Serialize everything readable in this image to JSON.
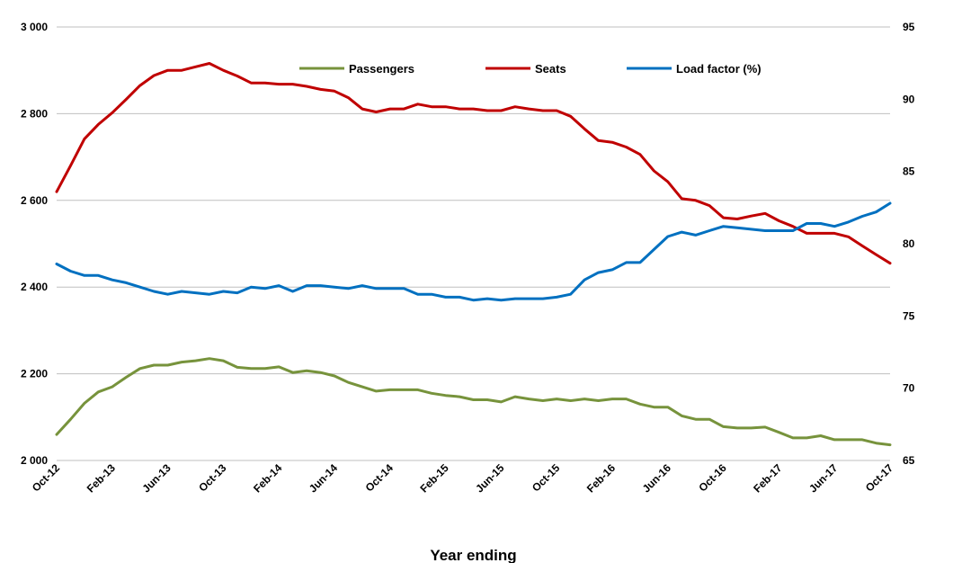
{
  "chart_data": {
    "type": "line",
    "xlabel": "Year ending",
    "ylabel": "",
    "y2label": "",
    "ylim": [
      2000,
      3000
    ],
    "y2lim": [
      65,
      95
    ],
    "yticks": [
      "2 000",
      "2 200",
      "2 400",
      "2 600",
      "2 800",
      "3 000"
    ],
    "y2ticks": [
      "65",
      "70",
      "75",
      "80",
      "85",
      "90",
      "95"
    ],
    "grid": "horizontal",
    "legend_placement": "top",
    "x": [
      "Oct-12",
      "Nov-12",
      "Dec-12",
      "Jan-13",
      "Feb-13",
      "Mar-13",
      "Apr-13",
      "May-13",
      "Jun-13",
      "Jul-13",
      "Aug-13",
      "Sep-13",
      "Oct-13",
      "Nov-13",
      "Dec-13",
      "Jan-14",
      "Feb-14",
      "Mar-14",
      "Apr-14",
      "May-14",
      "Jun-14",
      "Jul-14",
      "Aug-14",
      "Sep-14",
      "Oct-14",
      "Nov-14",
      "Dec-14",
      "Jan-15",
      "Feb-15",
      "Mar-15",
      "Apr-15",
      "May-15",
      "Jun-15",
      "Jul-15",
      "Aug-15",
      "Sep-15",
      "Oct-15",
      "Nov-15",
      "Dec-15",
      "Jan-16",
      "Feb-16",
      "Mar-16",
      "Apr-16",
      "May-16",
      "Jun-16",
      "Jul-16",
      "Aug-16",
      "Sep-16",
      "Oct-16",
      "Nov-16",
      "Dec-16",
      "Jan-17",
      "Feb-17",
      "Mar-17",
      "Apr-17",
      "May-17",
      "Jun-17",
      "Jul-17",
      "Aug-17",
      "Sep-17",
      "Oct-17"
    ],
    "xtick_labels": [
      "Oct-12",
      "Feb-13",
      "Jun-13",
      "Oct-13",
      "Feb-14",
      "Jun-14",
      "Oct-14",
      "Feb-15",
      "Jun-15",
      "Oct-15",
      "Feb-16",
      "Jun-16",
      "Oct-16",
      "Feb-17",
      "Jun-17",
      "Oct-17"
    ],
    "series": [
      {
        "name": "Passengers",
        "axis": "left",
        "color": "#77933c",
        "values": [
          2060,
          2095,
          2132,
          2158,
          2170,
          2192,
          2212,
          2220,
          2220,
          2227,
          2230,
          2235,
          2230,
          2215,
          2212,
          2212,
          2216,
          2203,
          2207,
          2203,
          2195,
          2180,
          2170,
          2160,
          2163,
          2163,
          2163,
          2155,
          2150,
          2147,
          2140,
          2140,
          2135,
          2147,
          2142,
          2138,
          2142,
          2138,
          2142,
          2138,
          2142,
          2142,
          2130,
          2123,
          2123,
          2103,
          2095,
          2095,
          2078,
          2075,
          2075,
          2077,
          2065,
          2052,
          2052,
          2057,
          2048,
          2048,
          2048,
          2040,
          2036
        ]
      },
      {
        "name": "Seats",
        "axis": "left",
        "color": "#c00000",
        "values": [
          2620,
          2680,
          2742,
          2775,
          2802,
          2833,
          2865,
          2888,
          2900,
          2900,
          2908,
          2916,
          2900,
          2887,
          2871,
          2871,
          2868,
          2868,
          2863,
          2856,
          2852,
          2837,
          2811,
          2804,
          2811,
          2811,
          2822,
          2816,
          2816,
          2811,
          2811,
          2807,
          2807,
          2816,
          2811,
          2807,
          2807,
          2794,
          2765,
          2738,
          2734,
          2723,
          2706,
          2668,
          2643,
          2604,
          2600,
          2588,
          2560,
          2557,
          2564,
          2570,
          2553,
          2540,
          2524,
          2524,
          2524,
          2516,
          2495,
          2475,
          2455
        ]
      },
      {
        "name": "Load factor (%)",
        "axis": "right",
        "color": "#0070c0",
        "values": [
          78.6,
          78.1,
          77.8,
          77.8,
          77.5,
          77.3,
          77.0,
          76.7,
          76.5,
          76.7,
          76.6,
          76.5,
          76.7,
          76.6,
          77.0,
          76.9,
          77.1,
          76.7,
          77.1,
          77.1,
          77.0,
          76.9,
          77.1,
          76.9,
          76.9,
          76.9,
          76.5,
          76.5,
          76.3,
          76.3,
          76.1,
          76.2,
          76.1,
          76.2,
          76.2,
          76.2,
          76.3,
          76.5,
          77.5,
          78.0,
          78.2,
          78.7,
          78.7,
          79.6,
          80.5,
          80.8,
          80.6,
          80.9,
          81.2,
          81.1,
          81.0,
          80.9,
          80.9,
          80.9,
          81.4,
          81.4,
          81.2,
          81.5,
          81.9,
          82.2,
          82.8
        ]
      }
    ]
  }
}
